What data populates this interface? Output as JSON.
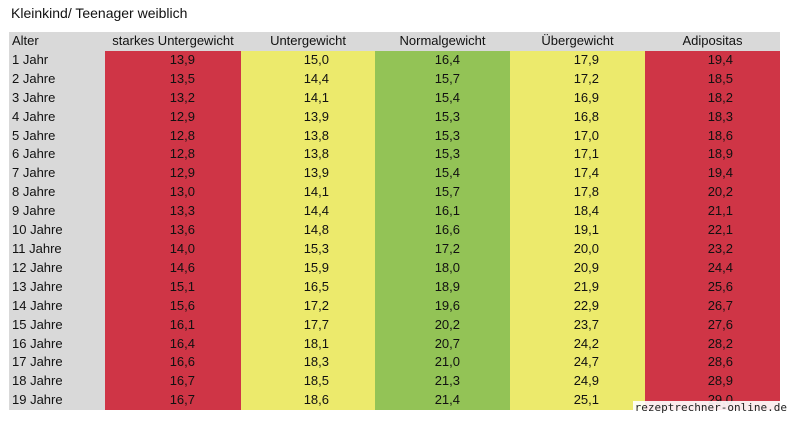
{
  "title": "Kleinkind/ Teenager weiblich",
  "table": {
    "headers": [
      "Alter",
      "starkes Untergewicht",
      "Untergewicht",
      "Normalgewicht",
      "Übergewicht",
      "Adipositas"
    ],
    "rows": [
      [
        "1 Jahr",
        "13,9",
        "15,0",
        "16,4",
        "17,9",
        "19,4"
      ],
      [
        "2 Jahre",
        "13,5",
        "14,4",
        "15,7",
        "17,2",
        "18,5"
      ],
      [
        "3 Jahre",
        "13,2",
        "14,1",
        "15,4",
        "16,9",
        "18,2"
      ],
      [
        "4 Jahre",
        "12,9",
        "13,9",
        "15,3",
        "16,8",
        "18,3"
      ],
      [
        "5 Jahre",
        "12,8",
        "13,8",
        "15,3",
        "17,0",
        "18,6"
      ],
      [
        "6 Jahre",
        "12,8",
        "13,8",
        "15,3",
        "17,1",
        "18,9"
      ],
      [
        "7 Jahre",
        "12,9",
        "13,9",
        "15,4",
        "17,4",
        "19,4"
      ],
      [
        "8 Jahre",
        "13,0",
        "14,1",
        "15,7",
        "17,8",
        "20,2"
      ],
      [
        "9 Jahre",
        "13,3",
        "14,4",
        "16,1",
        "18,4",
        "21,1"
      ],
      [
        "10 Jahre",
        "13,6",
        "14,8",
        "16,6",
        "19,1",
        "22,1"
      ],
      [
        "11 Jahre",
        "14,0",
        "15,3",
        "17,2",
        "20,0",
        "23,2"
      ],
      [
        "12 Jahre",
        "14,6",
        "15,9",
        "18,0",
        "20,9",
        "24,4"
      ],
      [
        "13 Jahre",
        "15,1",
        "16,5",
        "18,9",
        "21,9",
        "25,6"
      ],
      [
        "14 Jahre",
        "15,6",
        "17,2",
        "19,6",
        "22,9",
        "26,7"
      ],
      [
        "15 Jahre",
        "16,1",
        "17,7",
        "20,2",
        "23,7",
        "27,6"
      ],
      [
        "16 Jahre",
        "16,4",
        "18,1",
        "20,7",
        "24,2",
        "28,2"
      ],
      [
        "17 Jahre",
        "16,6",
        "18,3",
        "21,0",
        "24,7",
        "28,6"
      ],
      [
        "18 Jahre",
        "16,7",
        "18,5",
        "21,3",
        "24,9",
        "28,9"
      ],
      [
        "19 Jahre",
        "16,7",
        "18,6",
        "21,4",
        "25,1",
        "29,0"
      ]
    ]
  },
  "colors": {
    "severe_underweight": "#cf3546",
    "underweight": "#ecea6c",
    "normal": "#93c356",
    "overweight": "#ecea6c",
    "obese": "#cf3546",
    "header_bg": "#d9d9d9"
  },
  "watermark": "rezeptrechner-online.de"
}
